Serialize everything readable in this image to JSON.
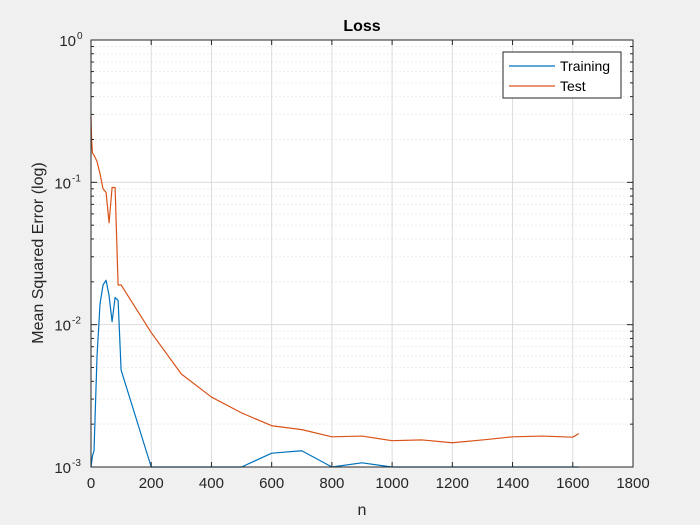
{
  "chart_data": {
    "type": "line",
    "title": "Loss",
    "xlabel": "n",
    "ylabel": "Mean Squared Error (log)",
    "xlim": [
      0,
      1800
    ],
    "ylim": [
      0.001,
      1
    ],
    "yscale": "log",
    "grid": true,
    "minor_grid": true,
    "legend_position": "top-right",
    "x_ticks": [
      "0",
      "200",
      "400",
      "600",
      "800",
      "1000",
      "1200",
      "1400",
      "1600",
      "1800"
    ],
    "y_ticks": [
      {
        "base": "10",
        "exp": "-3"
      },
      {
        "base": "10",
        "exp": "-2"
      },
      {
        "base": "10",
        "exp": "-1"
      },
      {
        "base": "10",
        "exp": "0"
      }
    ],
    "series": [
      {
        "name": "Training",
        "color": "#0072bd",
        "x": [
          0,
          5,
          10,
          20,
          30,
          40,
          50,
          60,
          70,
          80,
          90,
          100,
          200,
          300,
          400,
          500,
          600,
          700,
          800,
          900,
          1000,
          1100,
          1200,
          1300,
          1400,
          1500,
          1600,
          1620
        ],
        "y": [
          0.001,
          0.0012,
          0.0013,
          0.006,
          0.014,
          0.019,
          0.0205,
          0.016,
          0.0105,
          0.0155,
          0.0148,
          0.0048,
          0.001,
          0.001,
          0.001,
          0.001,
          0.00125,
          0.0013,
          0.001,
          0.00107,
          0.001,
          0.001,
          0.001,
          0.001,
          0.001,
          0.001,
          0.001,
          0.001
        ]
      },
      {
        "name": "Test",
        "color": "#d95319",
        "x": [
          0,
          2,
          5,
          10,
          20,
          30,
          40,
          50,
          60,
          70,
          80,
          90,
          100,
          200,
          300,
          400,
          500,
          600,
          700,
          800,
          900,
          1000,
          1100,
          1200,
          1300,
          1400,
          1500,
          1600,
          1620
        ],
        "y": [
          0.29,
          0.2,
          0.16,
          0.155,
          0.14,
          0.115,
          0.09,
          0.085,
          0.052,
          0.092,
          0.092,
          0.019,
          0.019,
          0.0088,
          0.0045,
          0.0031,
          0.0024,
          0.00195,
          0.00183,
          0.00163,
          0.00165,
          0.00153,
          0.00155,
          0.00148,
          0.00155,
          0.00163,
          0.00165,
          0.00162,
          0.00172
        ]
      }
    ]
  }
}
